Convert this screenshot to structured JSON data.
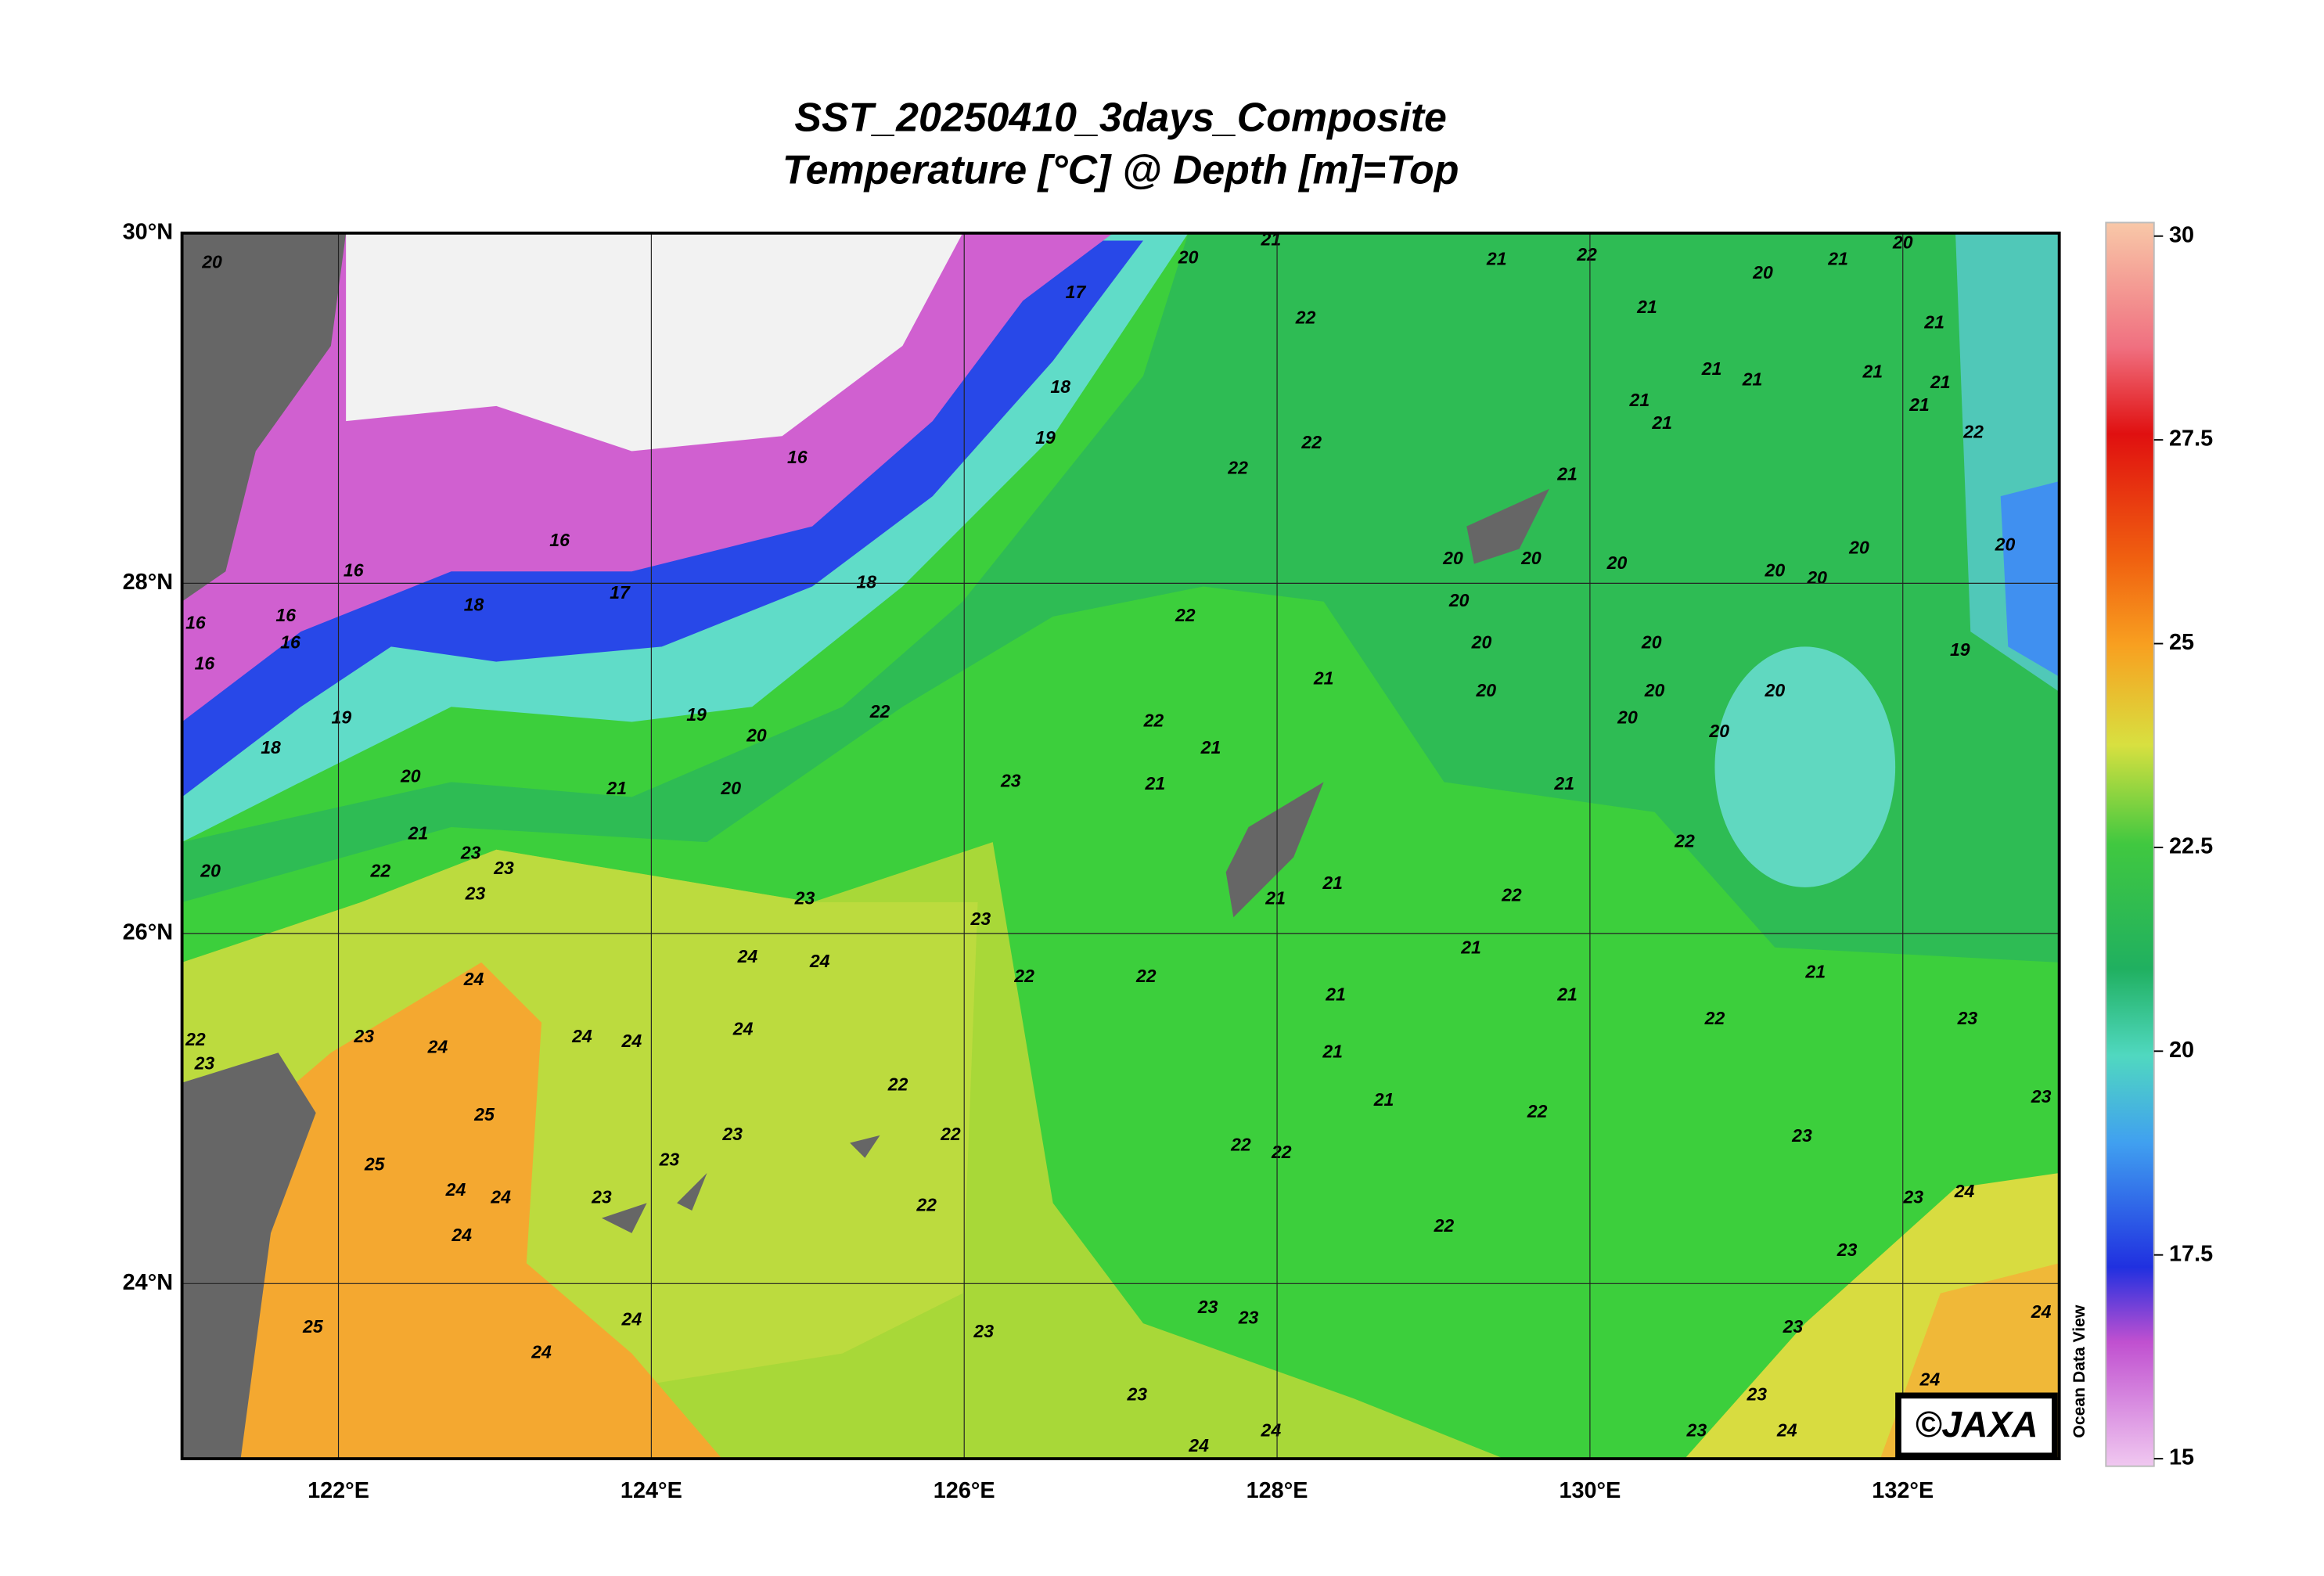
{
  "chart_data": {
    "type": "map",
    "title": "SST_20250410_3days_Composite",
    "subtitle": "Temperature [°C] @ Depth [m]=Top",
    "xlim": [
      121,
      133
    ],
    "ylim": [
      23,
      30
    ],
    "xticks": [
      {
        "value": 122,
        "label": "122°E"
      },
      {
        "value": 124,
        "label": "124°E"
      },
      {
        "value": 126,
        "label": "126°E"
      },
      {
        "value": 128,
        "label": "128°E"
      },
      {
        "value": 130,
        "label": "130°E"
      },
      {
        "value": 132,
        "label": "132°E"
      }
    ],
    "yticks": [
      {
        "value": 24,
        "label": "24°N"
      },
      {
        "value": 26,
        "label": "26°N"
      },
      {
        "value": 28,
        "label": "28°N"
      },
      {
        "value": 30,
        "label": "30°N"
      }
    ],
    "grid": true,
    "colorbar": {
      "lim": [
        15,
        30
      ],
      "ticks": [
        15,
        17.5,
        20,
        22.5,
        25,
        27.5,
        30
      ]
    },
    "side_label": "Ocean Data View",
    "credit": "©JAXA",
    "contour_labels": [
      17,
      18,
      19,
      16,
      16,
      16,
      17,
      18,
      16,
      16,
      16,
      16,
      18,
      19,
      19,
      18,
      20,
      20,
      20,
      21,
      21,
      22,
      20,
      23,
      23,
      23,
      23,
      23,
      22,
      23,
      22,
      21,
      21,
      22,
      22,
      22,
      22,
      20,
      21,
      21,
      21,
      21,
      22,
      21,
      21,
      21,
      21,
      21,
      22,
      22,
      22,
      21,
      21,
      23,
      23,
      23,
      23,
      24,
      23,
      23,
      23,
      24,
      23,
      24,
      24,
      22,
      22,
      22,
      23,
      23,
      23,
      23,
      22,
      22,
      22,
      22,
      22,
      24,
      24,
      24,
      24,
      24,
      24,
      24,
      23,
      22,
      23,
      25,
      25,
      24,
      24,
      24,
      24,
      24,
      25,
      23,
      23,
      23,
      24,
      24,
      20,
      20,
      20,
      20,
      20,
      20,
      20,
      20,
      20,
      20,
      20,
      20,
      20,
      20,
      21,
      21,
      21,
      21,
      21,
      21,
      21,
      21,
      21,
      21,
      21,
      20,
      20,
      21,
      22,
      22,
      20,
      19,
      20
    ]
  }
}
